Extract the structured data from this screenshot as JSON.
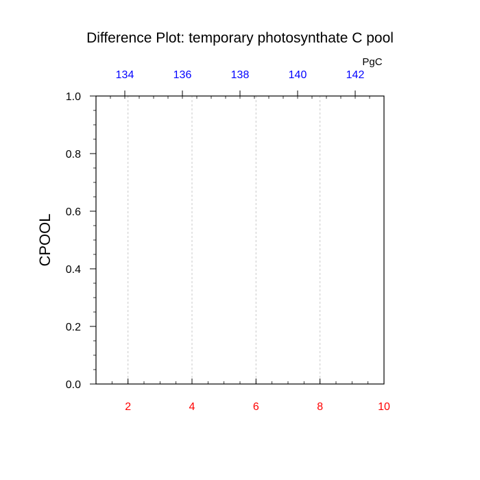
{
  "chart_data": {
    "type": "line",
    "title": "Difference Plot: temporary photosynthate C pool",
    "ylabel": "CPOOL",
    "xlabel": "",
    "top_axis_unit": "PgC",
    "grid": "vertical dashed",
    "series": [],
    "x_axis": {
      "range": [
        1,
        10
      ],
      "ticks": [
        2,
        4,
        6,
        8,
        10
      ],
      "tick_labels": [
        "2",
        "4",
        "6",
        "8",
        "10"
      ],
      "color": "#ff0000"
    },
    "y_axis": {
      "range": [
        0,
        1
      ],
      "ticks": [
        0,
        0.2,
        0.4,
        0.6,
        0.8,
        1.0
      ],
      "tick_labels": [
        "0.0",
        "0.2",
        "0.4",
        "0.6",
        "0.8",
        "1.0"
      ],
      "color": "#000000"
    },
    "top_axis": {
      "range": [
        133,
        143
      ],
      "ticks": [
        134,
        136,
        138,
        140,
        142
      ],
      "tick_labels": [
        "134",
        "136",
        "138",
        "140",
        "142"
      ],
      "color": "#0000ff"
    }
  }
}
